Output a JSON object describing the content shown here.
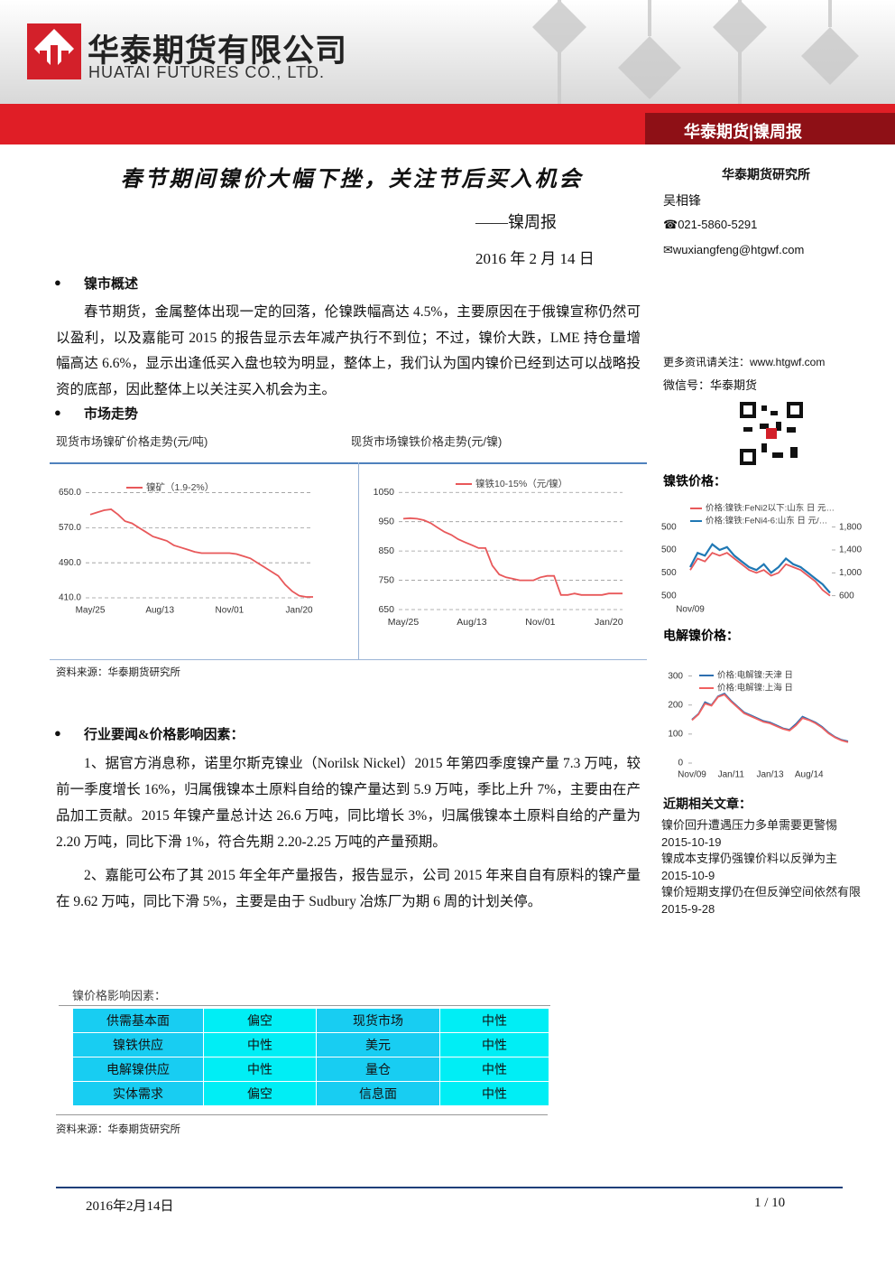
{
  "header": {
    "company_cn": "华泰期货有限公司",
    "company_en": "HUATAI FUTURES CO., LTD.",
    "banner": "华泰期货|镍周报"
  },
  "report": {
    "title": "春节期间镍价大幅下挫，关注节后买入机会",
    "subtitle": "——镍周报",
    "date": "2016 年 2 月 14 日"
  },
  "overview": {
    "heading": "镍市概述",
    "text": "春节期货，金属整体出现一定的回落，伦镍跌幅高达 4.5%，主要原因在于俄镍宣称仍然可以盈利，以及嘉能可 2015 的报告显示去年减产执行不到位；不过，镍价大跌，LME 持仓量增幅高达 6.6%，显示出逢低买入盘也较为明显，整体上，我们认为国内镍价已经到达可以战略投资的底部，因此整体上以关注买入机会为主。"
  },
  "market": {
    "heading": "市场走势",
    "source": "资料来源：华泰期货研究所"
  },
  "news": {
    "heading": "行业要闻&价格影响因素：",
    "paragraphs": [
      "1、据官方消息称，诺里尔斯克镍业（Norilsk Nickel）2015 年第四季度镍产量 7.3 万吨，较前一季度增长 16%，归属俄镍本土原料自给的镍产量达到 5.9 万吨，季比上升 7%，主要由在产品加工贡献。2015 年镍产量总计达 26.6 万吨，同比增长 3%，归属俄镍本土原料自给的产量为 2.20 万吨，同比下滑 1%，符合先期 2.20-2.25 万吨的产量预期。",
      "2、嘉能可公布了其 2015 年全年产量报告，报告显示，公司 2015 年来自自有原料的镍产量在 9.62 万吨，同比下滑 5%，主要是由于 Sudbury 冶炼厂为期 6 周的计划关停。"
    ]
  },
  "factors": {
    "caption": "镍价格影响因素：",
    "rows": [
      [
        "供需基本面",
        "偏空",
        "现货市场",
        "中性"
      ],
      [
        "镍铁供应",
        "中性",
        "美元",
        "中性"
      ],
      [
        "电解镍供应",
        "中性",
        "量仓",
        "中性"
      ],
      [
        "实体需求",
        "偏空",
        "信息面",
        "中性"
      ]
    ],
    "source": "资料来源：华泰期货研究所"
  },
  "sidebar": {
    "institute": "华泰期货研究所",
    "analyst": "吴相锋",
    "phone": "021-5860-5291",
    "email": "wuxiangfeng@htgwf.com",
    "more": "更多资讯请关注：www.htgwf.com",
    "wechat": "微信号：华泰期货",
    "articles_heading": "近期相关文章：",
    "articles": [
      {
        "title": "镍价回升遭遇压力多单需要更警惕",
        "date": "2015-10-19"
      },
      {
        "title": "镍成本支撑仍强镍价料以反弹为主",
        "date": "2015-10-9"
      },
      {
        "title": "镍价短期支撑仍在但反弹空间依然有限",
        "date": "2015-9-28"
      }
    ]
  },
  "footer": {
    "date": "2016年2月14日",
    "page": "1 / 10"
  },
  "chart_data": [
    {
      "type": "line",
      "title": "现货市场镍矿价格走势(元/吨)",
      "grid": true,
      "legend": "top",
      "categories": [
        "May/25",
        null,
        null,
        null,
        null,
        null,
        null,
        null,
        null,
        null,
        "Aug/13",
        null,
        null,
        null,
        null,
        null,
        null,
        null,
        null,
        null,
        "Nov/01",
        null,
        null,
        null,
        null,
        null,
        null,
        null,
        null,
        null,
        "Jan/20",
        null,
        null
      ],
      "ylim": [
        410,
        680
      ],
      "yticks": [
        {
          "value": 410,
          "label": "410.0"
        },
        {
          "value": 490,
          "label": "490.0"
        },
        {
          "value": 570,
          "label": "570.0"
        },
        {
          "value": 650,
          "label": "650.0"
        }
      ],
      "series": [
        {
          "name": "镍矿（1.9-2%）",
          "color": "#e8585a",
          "values": [
            600,
            605,
            610,
            612,
            600,
            585,
            580,
            570,
            560,
            550,
            545,
            540,
            530,
            525,
            520,
            515,
            512,
            512,
            512,
            512,
            512,
            510,
            505,
            500,
            490,
            480,
            470,
            460,
            440,
            425,
            415,
            412,
            412
          ]
        }
      ]
    },
    {
      "type": "line",
      "title": "现货市场镍铁价格走势(元/镍)",
      "grid": true,
      "legend": "top",
      "categories": [
        "May/25",
        null,
        null,
        null,
        null,
        null,
        null,
        null,
        null,
        null,
        "Aug/13",
        null,
        null,
        null,
        null,
        null,
        null,
        null,
        null,
        null,
        "Nov/01",
        null,
        null,
        null,
        null,
        null,
        null,
        null,
        null,
        null,
        "Jan/20",
        null,
        null
      ],
      "ylim": [
        650,
        1100
      ],
      "yticks": [
        650,
        750,
        850,
        950,
        1050
      ],
      "series": [
        {
          "name": "镍铁10-15%（元/镍）",
          "color": "#e8585a",
          "values": [
            960,
            962,
            960,
            955,
            945,
            930,
            915,
            905,
            890,
            880,
            870,
            860,
            860,
            800,
            770,
            760,
            755,
            750,
            750,
            750,
            760,
            765,
            765,
            700,
            700,
            705,
            700,
            700,
            700,
            700,
            705,
            705,
            705
          ]
        }
      ]
    },
    {
      "type": "line",
      "title": "镍铁价格：",
      "grid": false,
      "legend": "top-right",
      "yaxis_position": "right",
      "categories": [
        "Nov/09",
        null,
        null,
        null,
        null,
        null,
        null,
        null,
        null,
        null,
        null,
        null,
        null,
        null,
        null,
        null,
        null,
        null,
        null,
        null
      ],
      "ylim": [
        500,
        2000
      ],
      "yticks": [
        {
          "value": 600,
          "label": "600"
        },
        {
          "value": 1000,
          "label": "1,000"
        },
        {
          "value": 1400,
          "label": "1,400"
        },
        {
          "value": 1800,
          "label": "1,800"
        }
      ],
      "left_axis_labels": [
        "500",
        "500",
        "500",
        "500"
      ],
      "series": [
        {
          "name": "价格:镍铁:FeNi2以下:山东 日 元…",
          "color": "#e8585a",
          "values": [
            1050,
            1250,
            1200,
            1350,
            1300,
            1350,
            1250,
            1150,
            1050,
            1000,
            1050,
            950,
            1000,
            1150,
            1100,
            1050,
            950,
            850,
            700,
            600
          ]
        },
        {
          "name": "价格:镍铁:FeNi4-6:山东 日 元/…",
          "color": "#1f78b4",
          "values": [
            1100,
            1350,
            1300,
            1500,
            1400,
            1450,
            1300,
            1200,
            1100,
            1050,
            1150,
            1000,
            1100,
            1250,
            1150,
            1100,
            1000,
            900,
            800,
            650
          ]
        }
      ]
    },
    {
      "type": "line",
      "title": "电解镍价格：",
      "grid": false,
      "legend": "top-right",
      "categories": [
        "Nov/09",
        null,
        null,
        null,
        null,
        null,
        "Jan/11",
        null,
        null,
        null,
        null,
        null,
        "Jan/13",
        null,
        null,
        null,
        null,
        null,
        "Aug/14",
        null,
        null,
        null,
        null,
        null,
        null
      ],
      "ylim": [
        0,
        330
      ],
      "yticks": [
        0,
        100,
        200,
        300
      ],
      "series": [
        {
          "name": "价格:电解镍:天津 日",
          "color": "#2e6fb0",
          "values": [
            150,
            170,
            210,
            200,
            230,
            240,
            215,
            195,
            175,
            165,
            155,
            145,
            140,
            130,
            120,
            115,
            135,
            160,
            150,
            140,
            125,
            105,
            90,
            80,
            75
          ]
        },
        {
          "name": "价格:电解镍:上海 日",
          "color": "#f06060",
          "values": [
            148,
            168,
            205,
            198,
            228,
            236,
            212,
            192,
            172,
            162,
            152,
            142,
            137,
            127,
            118,
            112,
            130,
            155,
            148,
            137,
            122,
            102,
            88,
            78,
            72
          ]
        }
      ]
    }
  ]
}
